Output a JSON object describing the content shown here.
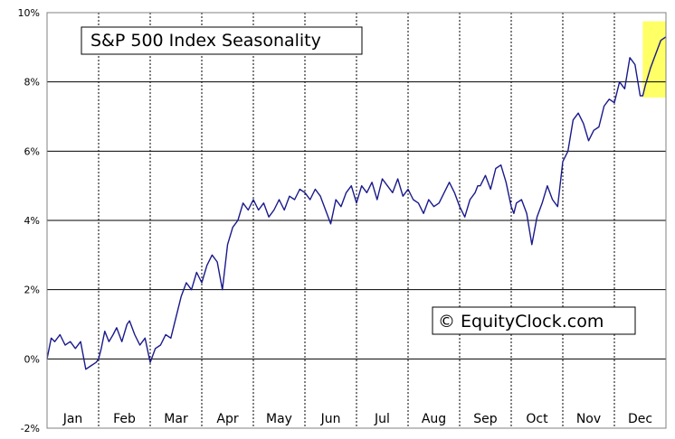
{
  "chart_data": {
    "type": "line",
    "title": "S&P 500 Index Seasonality",
    "credit": "© EquityClock.com",
    "y_unit": "%",
    "ylim": [
      -2,
      10
    ],
    "y_ticks": [
      -2,
      0,
      2,
      4,
      6,
      8,
      10
    ],
    "y_tick_labels": [
      "-2%",
      "0%",
      "2%",
      "4%",
      "6%",
      "8%",
      "10%"
    ],
    "x_range": [
      0,
      12
    ],
    "months": [
      "Jan",
      "Feb",
      "Mar",
      "Apr",
      "May",
      "Jun",
      "Jul",
      "Aug",
      "Sep",
      "Oct",
      "Nov",
      "Dec"
    ],
    "grid": {
      "horizontal": "solid",
      "vertical": "dashed"
    },
    "highlight": {
      "x0": 11.55,
      "x1": 12.0,
      "y0": 7.55,
      "y1": 9.75,
      "color": "#ffff66"
    },
    "series_color": "#1a1a8c",
    "series": [
      {
        "x": [
          0.0,
          0.08,
          0.15,
          0.25,
          0.35,
          0.45,
          0.55,
          0.65,
          0.75,
          0.85,
          0.95,
          1.0,
          1.05,
          1.12,
          1.2,
          1.28,
          1.35,
          1.45,
          1.55,
          1.6,
          1.7,
          1.8,
          1.9,
          2.0,
          2.1,
          2.2,
          2.3,
          2.4,
          2.5,
          2.6,
          2.7,
          2.8,
          2.9,
          3.0,
          3.1,
          3.2,
          3.3,
          3.4,
          3.5,
          3.6,
          3.7,
          3.8,
          3.9,
          4.0,
          4.1,
          4.2,
          4.3,
          4.4,
          4.5,
          4.6,
          4.7,
          4.8,
          4.9,
          5.0,
          5.1,
          5.2,
          5.3,
          5.4,
          5.5,
          5.6,
          5.7,
          5.8,
          5.9,
          6.0,
          6.1,
          6.2,
          6.3,
          6.4,
          6.5,
          6.6,
          6.7,
          6.8,
          6.9,
          7.0,
          7.1,
          7.2,
          7.3,
          7.4,
          7.5,
          7.6,
          7.7,
          7.8,
          7.9,
          8.0,
          8.1,
          8.2,
          8.3,
          8.35,
          8.4,
          8.5,
          8.6,
          8.7,
          8.8,
          8.9,
          9.0,
          9.05,
          9.1,
          9.2,
          9.3,
          9.4,
          9.5,
          9.6,
          9.7,
          9.8,
          9.9,
          10.0,
          10.1,
          10.2,
          10.3,
          10.4,
          10.5,
          10.6,
          10.7,
          10.8,
          10.9,
          11.0,
          11.1,
          11.2,
          11.3,
          11.4,
          11.5,
          11.55,
          11.6,
          11.7,
          11.8,
          11.9,
          12.0
        ],
        "y": [
          0.0,
          0.6,
          0.5,
          0.7,
          0.4,
          0.5,
          0.3,
          0.5,
          -0.3,
          -0.2,
          -0.1,
          0.0,
          0.3,
          0.8,
          0.5,
          0.7,
          0.9,
          0.5,
          1.0,
          1.1,
          0.7,
          0.4,
          0.6,
          -0.1,
          0.3,
          0.4,
          0.7,
          0.6,
          1.2,
          1.8,
          2.2,
          2.0,
          2.5,
          2.2,
          2.7,
          3.0,
          2.8,
          2.0,
          3.3,
          3.8,
          4.0,
          4.5,
          4.3,
          4.6,
          4.3,
          4.5,
          4.1,
          4.3,
          4.6,
          4.3,
          4.7,
          4.6,
          4.9,
          4.8,
          4.6,
          4.9,
          4.7,
          4.3,
          3.9,
          4.6,
          4.4,
          4.8,
          5.0,
          4.5,
          5.0,
          4.8,
          5.1,
          4.6,
          5.2,
          5.0,
          4.8,
          5.2,
          4.7,
          4.9,
          4.6,
          4.5,
          4.2,
          4.6,
          4.4,
          4.5,
          4.8,
          5.1,
          4.8,
          4.4,
          4.1,
          4.6,
          4.8,
          5.0,
          5.0,
          5.3,
          4.9,
          5.5,
          5.6,
          5.1,
          4.4,
          4.2,
          4.5,
          4.6,
          4.2,
          3.3,
          4.1,
          4.5,
          5.0,
          4.6,
          4.4,
          5.7,
          6.0,
          6.9,
          7.1,
          6.8,
          6.3,
          6.6,
          6.7,
          7.3,
          7.5,
          7.4,
          8.0,
          7.8,
          8.7,
          8.5,
          7.6,
          7.6,
          7.9,
          8.4,
          8.8,
          9.2,
          9.3
        ]
      }
    ]
  }
}
